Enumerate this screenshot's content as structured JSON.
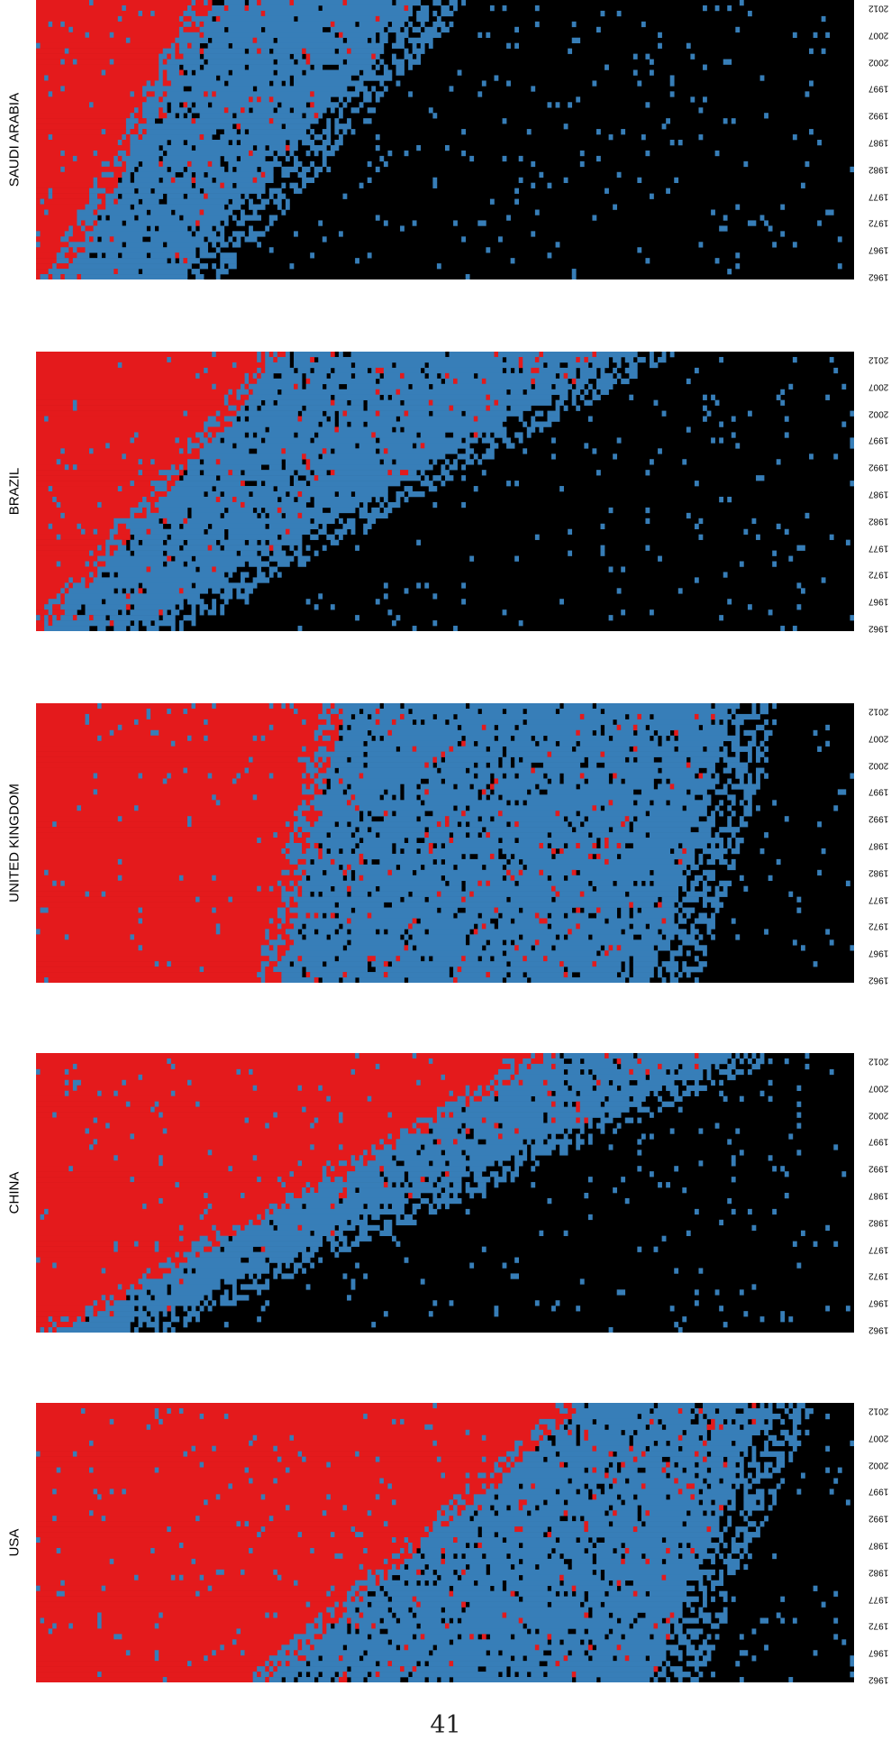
{
  "palette": {
    "red": "#e41a1c",
    "blue": "#377eb8",
    "black": "#000000"
  },
  "page_number": "41",
  "chart_data": [
    {
      "type": "heatmap",
      "title": "SAUDI ARABIA",
      "x_tick_labels": [
        "1962",
        "1967",
        "1972",
        "1977",
        "1982",
        "1987",
        "1992",
        "1997",
        "2002",
        "2007",
        "2012"
      ],
      "x_range": [
        1962,
        2013
      ],
      "y_categories": "country labels (unreadable)",
      "color_classes": [
        "red",
        "blue",
        "black"
      ]
    },
    {
      "type": "heatmap",
      "title": "BRAZIL",
      "x_tick_labels": [
        "1962",
        "1967",
        "1972",
        "1977",
        "1982",
        "1987",
        "1992",
        "1997",
        "2002",
        "2007",
        "2012"
      ],
      "x_range": [
        1962,
        2013
      ],
      "y_categories": "country labels (unreadable)",
      "color_classes": [
        "red",
        "blue",
        "black"
      ]
    },
    {
      "type": "heatmap",
      "title": "UNITED KINGDOM",
      "x_tick_labels": [
        "1962",
        "1967",
        "1972",
        "1977",
        "1982",
        "1987",
        "1992",
        "1997",
        "2002",
        "2007",
        "2012"
      ],
      "x_range": [
        1962,
        2013
      ],
      "y_categories": "country labels (unreadable)",
      "color_classes": [
        "red",
        "blue",
        "black"
      ]
    },
    {
      "type": "heatmap",
      "title": "CHINA",
      "x_tick_labels": [
        "1962",
        "1967",
        "1972",
        "1977",
        "1982",
        "1987",
        "1992",
        "1997",
        "2002",
        "2007",
        "2012"
      ],
      "x_range": [
        1962,
        2013
      ],
      "y_categories": "country labels (unreadable)",
      "color_classes": [
        "red",
        "blue",
        "black"
      ]
    },
    {
      "type": "heatmap",
      "title": "USA",
      "x_tick_labels": [
        "1962",
        "1967",
        "1972",
        "1977",
        "1982",
        "1987",
        "1992",
        "1997",
        "2002",
        "2007",
        "2012"
      ],
      "x_range": [
        1962,
        2013
      ],
      "y_categories": "country labels (unreadable)",
      "color_classes": [
        "red",
        "blue",
        "black"
      ]
    }
  ]
}
